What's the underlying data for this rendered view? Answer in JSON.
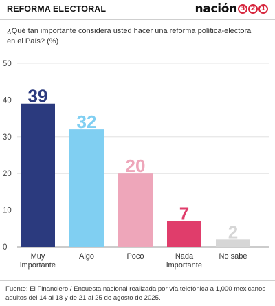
{
  "header": {
    "section_title": "REFORMA ELECTORAL",
    "brand_word": "nación",
    "brand_digits": [
      "3",
      "2",
      "1"
    ]
  },
  "question": "¿Qué tan importante considera usted hacer una reforma política-electoral en el País?  (%)",
  "colors": {
    "bars": [
      "#2b3a7e",
      "#80cff2",
      "#eea6ba",
      "#e03d6b",
      "#d6d6d6"
    ],
    "brand_accent": "#d7263d"
  },
  "chart_data": {
    "type": "bar",
    "categories": [
      [
        "Muy",
        "importante"
      ],
      [
        "Algo"
      ],
      [
        "Poco"
      ],
      [
        "Nada",
        "importante"
      ],
      [
        "No sabe"
      ]
    ],
    "values": [
      39,
      32,
      20,
      7,
      2
    ],
    "value_labels": [
      "39",
      "32",
      "20",
      "7",
      "2"
    ],
    "title": "",
    "xlabel": "",
    "ylabel": "",
    "ylim": [
      0,
      50
    ],
    "yticks": [
      0,
      10,
      20,
      30,
      40,
      50
    ],
    "grid": true,
    "legend": "none"
  },
  "source": "Fuente: El Financiero / Encuesta nacional realizada por vía telefónica a 1,000 mexicanos adultos del 14 al 18 y de 21 al 25 de agosto de 2025."
}
